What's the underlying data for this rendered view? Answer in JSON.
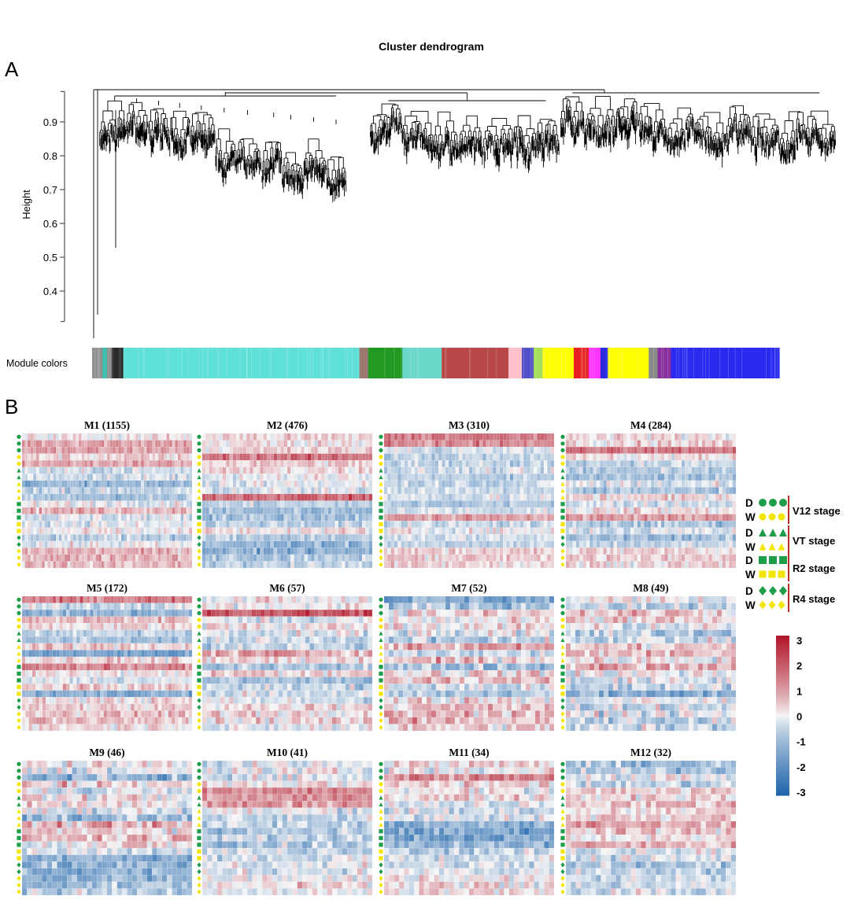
{
  "panel_a": {
    "letter": "A",
    "title": "Cluster dendrogram",
    "ylabel": "Height",
    "module_colors_label": "Module colors"
  },
  "panel_b": {
    "letter": "B"
  },
  "legend": {
    "groups": [
      {
        "d": "D",
        "w": "W",
        "stage": "V12 stage",
        "shape": "circle"
      },
      {
        "d": "D",
        "w": "W",
        "stage": "VT stage",
        "shape": "triangle"
      },
      {
        "d": "D",
        "w": "W",
        "stage": "R2 stage",
        "shape": "square"
      },
      {
        "d": "D",
        "w": "W",
        "stage": "R4 stage",
        "shape": "diamond"
      }
    ],
    "colors": {
      "drought": "#1e9e4a",
      "well": "#f2e600",
      "stage_line": "#c0282a"
    }
  },
  "colorbar": {
    "ticks": [
      "3",
      "2",
      "1",
      "0",
      "-1",
      "-2",
      "-3"
    ],
    "min": -3,
    "max": 3,
    "high_color": "#b2182b",
    "mid_color": "#f7f7f7",
    "low_color": "#2166ac"
  },
  "chart_data": [
    {
      "type": "dendrogram",
      "title": "Cluster dendrogram",
      "ylabel": "Height",
      "yticks": [
        0.4,
        0.5,
        0.6,
        0.7,
        0.8,
        0.9
      ],
      "ylim": [
        0.3,
        1.0
      ],
      "module_colors": [
        {
          "color": "#909090",
          "fraction": 0.014
        },
        {
          "color": "#3cc0b0",
          "fraction": 0.006
        },
        {
          "color": "#909090",
          "fraction": 0.006
        },
        {
          "color": "#2a2a2a",
          "fraction": 0.016
        },
        {
          "color": "#5fe0d8",
          "fraction": 0.318
        },
        {
          "color": "#9a7a70",
          "fraction": 0.012
        },
        {
          "color": "#229a22",
          "fraction": 0.046
        },
        {
          "color": "#6cd8cc",
          "fraction": 0.053
        },
        {
          "color": "#b84848",
          "fraction": 0.09
        },
        {
          "color": "#ffc0cb",
          "fraction": 0.018
        },
        {
          "color": "#5050c8",
          "fraction": 0.016
        },
        {
          "color": "#a6e05a",
          "fraction": 0.012
        },
        {
          "color": "#ffff00",
          "fraction": 0.042
        },
        {
          "color": "#e62020",
          "fraction": 0.02
        },
        {
          "color": "#ff33ff",
          "fraction": 0.016
        },
        {
          "color": "#2b2be0",
          "fraction": 0.01
        },
        {
          "color": "#ffff00",
          "fraction": 0.055
        },
        {
          "color": "#8a8a8a",
          "fraction": 0.012
        },
        {
          "color": "#8a2fa0",
          "fraction": 0.018
        },
        {
          "color": "#2b2bf0",
          "fraction": 0.146
        }
      ]
    },
    {
      "type": "heatmap",
      "title": "M1 (1155)",
      "row_pattern": [
        0.1,
        1.0,
        0.9,
        0.3,
        0.9,
        -0.4,
        -0.3,
        -1.2,
        -0.5,
        -0.9,
        0.0,
        0.8,
        -0.3,
        -0.2,
        0.0,
        -0.7,
        -0.1,
        0.7,
        0.8,
        0.6
      ],
      "noise": 0.5,
      "columns": 60
    },
    {
      "type": "heatmap",
      "title": "M2 (476)",
      "row_pattern": [
        0.3,
        0.2,
        0.3,
        1.6,
        0.4,
        0.3,
        0.0,
        -0.2,
        -0.3,
        1.8,
        -0.6,
        -1.0,
        -0.9,
        -0.6,
        0.2,
        -0.7,
        -1.2,
        -1.3,
        -0.8,
        -0.6
      ],
      "noise": 0.5,
      "columns": 50
    },
    {
      "type": "heatmap",
      "title": "M3 (310)",
      "row_pattern": [
        1.5,
        1.2,
        -0.3,
        -0.6,
        -0.5,
        -0.4,
        -0.6,
        -0.5,
        -0.4,
        -0.3,
        -0.8,
        -0.3,
        1.0,
        -0.5,
        0.0,
        -0.3,
        -0.5,
        0.4,
        0.5,
        0.3
      ],
      "noise": 0.45,
      "columns": 50
    },
    {
      "type": "heatmap",
      "title": "M4 (284)",
      "row_pattern": [
        0.2,
        0.4,
        1.7,
        0.1,
        -0.5,
        -0.8,
        -1.0,
        -0.2,
        -0.9,
        0.3,
        -0.3,
        0.2,
        1.0,
        -0.8,
        -0.3,
        -1.0,
        -0.5,
        0.3,
        0.5,
        0.3
      ],
      "noise": 0.5,
      "columns": 50
    },
    {
      "type": "heatmap",
      "title": "M5 (172)",
      "row_pattern": [
        1.4,
        -0.4,
        -1.2,
        0.6,
        0.3,
        -0.5,
        -0.9,
        0.4,
        -1.6,
        0.3,
        1.3,
        0.1,
        -0.3,
        0.4,
        -1.3,
        0.2,
        0.4,
        0.6,
        0.5,
        0.3
      ],
      "noise": 0.5,
      "columns": 50
    },
    {
      "type": "heatmap",
      "title": "M6 (57)",
      "row_pattern": [
        0.0,
        0.1,
        2.1,
        -0.3,
        0.2,
        -0.2,
        -0.4,
        -0.6,
        0.9,
        0.3,
        -0.8,
        0.5,
        -0.9,
        -0.5,
        -0.3,
        -0.3,
        0.2,
        0.4,
        0.3,
        0.0
      ],
      "noise": 0.6,
      "columns": 38
    },
    {
      "type": "heatmap",
      "title": "M7 (52)",
      "row_pattern": [
        -1.4,
        -0.8,
        0.3,
        -0.1,
        0.1,
        -0.3,
        -0.6,
        0.8,
        -0.5,
        0.5,
        -0.9,
        0.3,
        0.6,
        -0.4,
        -0.8,
        0.3,
        0.5,
        0.7,
        0.6,
        0.3
      ],
      "noise": 0.7,
      "columns": 36
    },
    {
      "type": "heatmap",
      "title": "M8 (49)",
      "row_pattern": [
        0.0,
        -0.5,
        0.6,
        0.3,
        -0.2,
        -0.7,
        -0.4,
        0.4,
        0.6,
        0.1,
        0.9,
        0.0,
        -0.3,
        -0.5,
        -1.3,
        -0.2,
        -0.4,
        -0.2,
        -0.6,
        -0.5
      ],
      "noise": 0.7,
      "columns": 36
    },
    {
      "type": "heatmap",
      "title": "M9 (46)",
      "row_pattern": [
        0.0,
        -0.2,
        -1.2,
        0.3,
        -0.3,
        0.2,
        0.1,
        -0.2,
        -1.0,
        0.6,
        0.4,
        0.7,
        0.2,
        -0.3,
        -1.2,
        -1.3,
        -1.3,
        -1.2,
        -0.9,
        -0.6
      ],
      "noise": 0.7,
      "columns": 34
    },
    {
      "type": "heatmap",
      "title": "M10 (41)",
      "row_pattern": [
        -0.3,
        -0.1,
        -0.2,
        0.2,
        1.3,
        1.2,
        1.1,
        -0.1,
        -0.5,
        -0.6,
        -0.8,
        -0.5,
        -0.7,
        -0.4,
        -0.3,
        -0.2,
        -0.2,
        -0.1,
        0.1,
        -0.2
      ],
      "noise": 0.6,
      "columns": 34
    },
    {
      "type": "heatmap",
      "title": "M11 (34)",
      "row_pattern": [
        0.2,
        0.0,
        1.3,
        0.3,
        0.0,
        0.4,
        -0.2,
        -0.4,
        -0.3,
        -1.3,
        -1.5,
        -1.5,
        -1.2,
        -0.6,
        -0.3,
        -0.4,
        -0.2,
        0.2,
        0.3,
        0.2
      ],
      "noise": 0.6,
      "columns": 34
    },
    {
      "type": "heatmap",
      "title": "M12 (32)",
      "row_pattern": [
        -1.0,
        -0.8,
        0.0,
        -0.6,
        0.4,
        0.3,
        0.6,
        0.3,
        0.5,
        0.9,
        0.4,
        0.2,
        0.7,
        -0.3,
        -0.3,
        -0.8,
        -0.6,
        -0.5,
        -0.4,
        -0.4
      ],
      "noise": 0.6,
      "columns": 34
    }
  ]
}
